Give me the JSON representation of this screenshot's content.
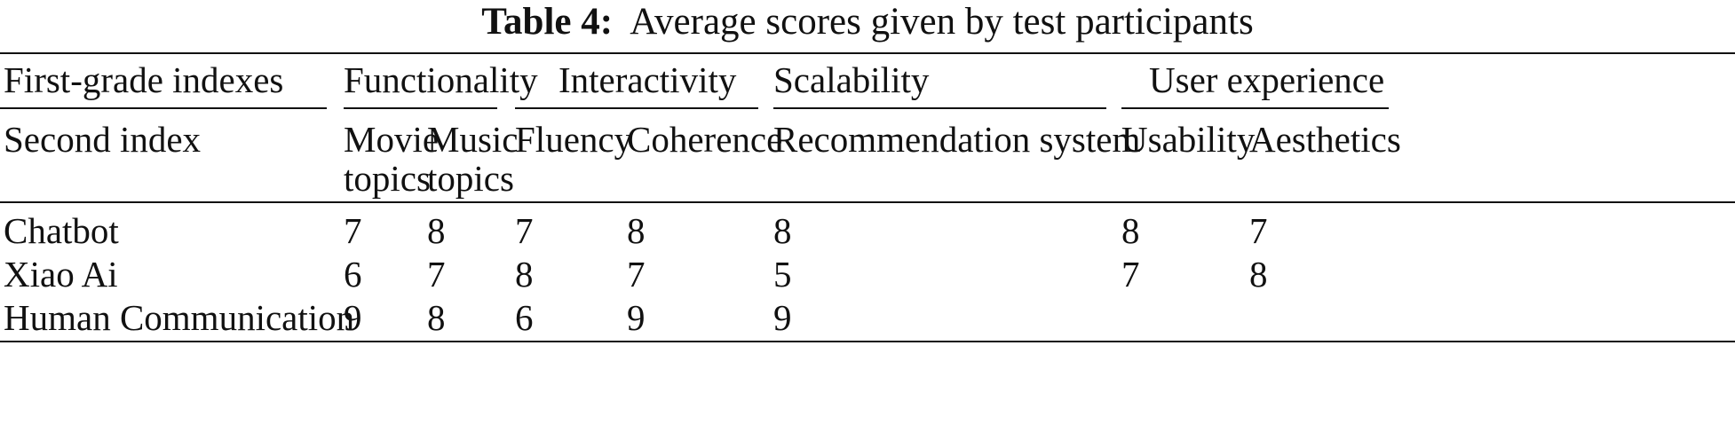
{
  "caption": {
    "label": "Table 4:",
    "text": "Average scores given by test participants"
  },
  "table": {
    "first_grade_header": "First-grade indexes",
    "second_index_header": "Second index",
    "groups": [
      "Functionality",
      "Interactivity",
      "Scalability",
      "User experience"
    ],
    "sub_columns": [
      [
        "Movie",
        "topics"
      ],
      [
        "Music",
        "topics"
      ],
      [
        "Fluency"
      ],
      [
        "Coherence"
      ],
      [
        "Recommendation system"
      ],
      [
        "Usability"
      ],
      [
        "Aesthetics"
      ]
    ],
    "rows": [
      {
        "name": "Chatbot",
        "values": [
          "7",
          "8",
          "7",
          "8",
          "8",
          "8",
          "7"
        ]
      },
      {
        "name": "Xiao Ai",
        "values": [
          "6",
          "7",
          "8",
          "7",
          "5",
          "7",
          "8"
        ]
      },
      {
        "name": "Human Communication",
        "values": [
          "9",
          "8",
          "6",
          "9",
          "9",
          "",
          ""
        ]
      }
    ]
  }
}
